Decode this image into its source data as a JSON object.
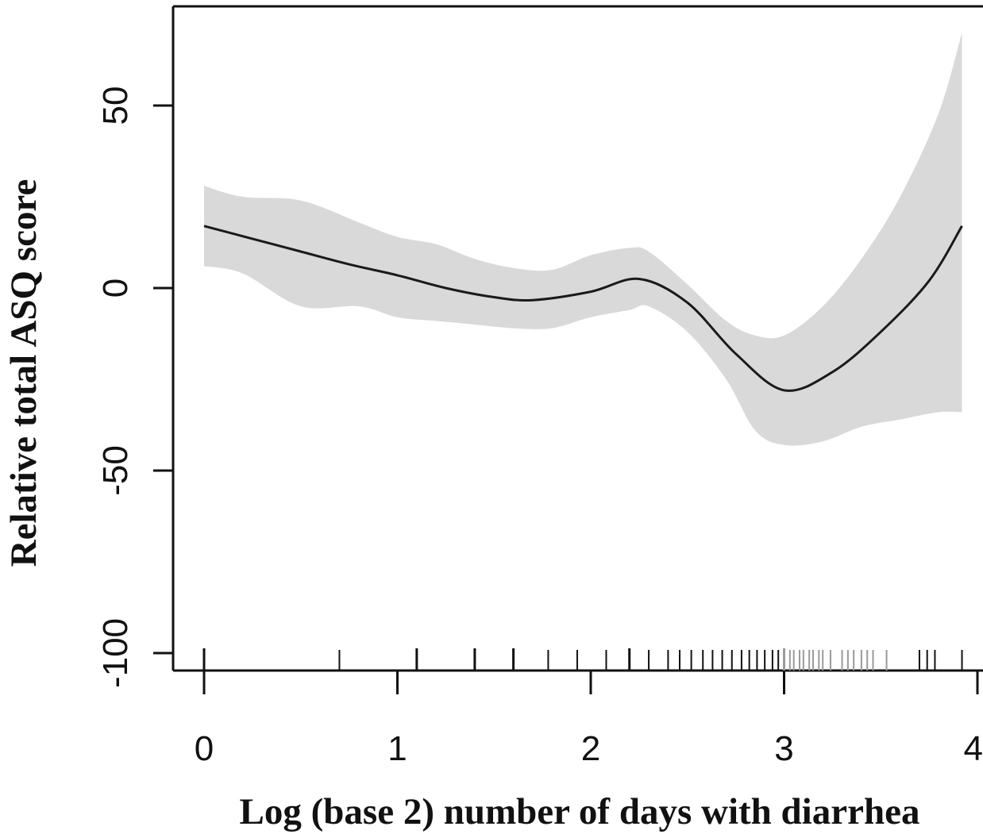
{
  "chart_data": {
    "type": "line",
    "title": "",
    "xlabel": "Log (base 2) number of days with diarrhea",
    "ylabel": "Relative total ASQ score",
    "xlim": [
      0,
      4
    ],
    "ylim": [
      -100,
      70
    ],
    "xticks": [
      "0",
      "1",
      "2",
      "3",
      "4"
    ],
    "yticks": [
      "-100",
      "-50",
      "0",
      "50"
    ],
    "grid": false,
    "legend": "none",
    "series": [
      {
        "x": [
          0,
          0.25,
          0.5,
          0.75,
          1.0,
          1.25,
          1.5,
          1.7,
          2.0,
          2.25,
          2.5,
          2.75,
          3.0,
          3.25,
          3.5,
          3.75,
          3.92
        ],
        "values": [
          17,
          13.5,
          10,
          6.5,
          3.5,
          0,
          -2.5,
          -3.3,
          -1,
          2.5,
          -4,
          -18,
          -28,
          -23,
          -12,
          2,
          17
        ]
      }
    ],
    "ci_band": {
      "x": [
        0,
        0.2,
        0.5,
        0.8,
        1.0,
        1.2,
        1.4,
        1.6,
        1.8,
        2.0,
        2.2,
        2.3,
        2.5,
        2.7,
        2.85,
        3.0,
        3.2,
        3.4,
        3.6,
        3.8,
        3.92
      ],
      "upper": [
        28,
        25,
        24,
        18,
        14,
        12,
        8,
        5.5,
        5,
        9,
        11,
        10,
        1,
        -9,
        -13,
        -13,
        -5,
        8,
        25,
        48,
        70
      ],
      "lower": [
        6,
        4,
        -5,
        -5,
        -8,
        -9,
        -10,
        -11,
        -11,
        -8,
        -6,
        -5,
        -12,
        -25,
        -39,
        -43,
        -42,
        -38,
        -36,
        -34,
        -34
      ]
    },
    "rug_x": [
      0,
      0.7,
      1.1,
      1.4,
      1.6,
      1.78,
      1.93,
      2.08,
      2.2,
      2.3,
      2.4,
      2.46,
      2.52,
      2.58,
      2.63,
      2.68,
      2.73,
      2.78,
      2.82,
      2.86,
      2.9,
      2.94,
      2.97,
      3.0,
      3.03,
      3.05,
      3.08,
      3.1,
      3.13,
      3.15,
      3.18,
      3.2,
      3.24,
      3.3,
      3.33,
      3.36,
      3.4,
      3.43,
      3.46,
      3.53,
      3.7,
      3.74,
      3.78,
      3.92
    ],
    "colors": {
      "line": "#1a1a1a",
      "band": "#d9d9d9",
      "axis": "#111111",
      "rug_dense": "#9a9a9a"
    }
  }
}
